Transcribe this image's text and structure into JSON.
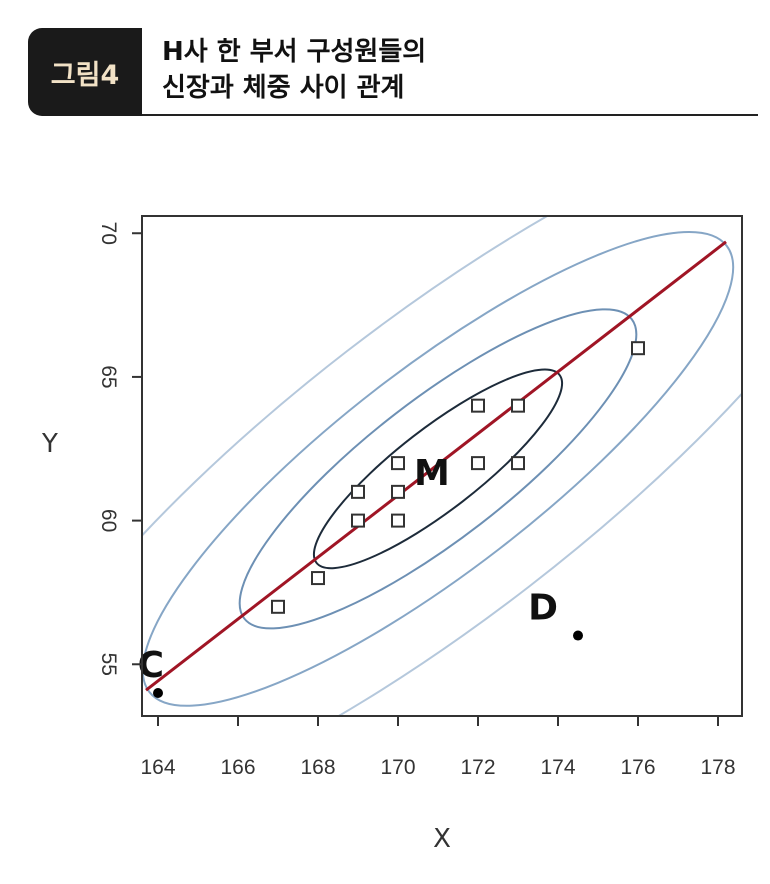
{
  "figure": {
    "badge": "그림4",
    "title_line1": "H사 한 부서 구성원들의",
    "title_line2": "신장과 체중 사이 관계"
  },
  "chart_data": {
    "type": "scatter",
    "xlabel": "X",
    "ylabel": "Y",
    "xlim": [
      163.6,
      178.6
    ],
    "ylim": [
      53.2,
      70.6
    ],
    "xticks": [
      164,
      166,
      168,
      170,
      172,
      174,
      176,
      178
    ],
    "yticks": [
      55,
      60,
      65,
      70
    ],
    "series": [
      {
        "marker": "open-square",
        "color": "#333333",
        "points": [
          [
            167,
            57
          ],
          [
            168,
            58
          ],
          [
            169,
            60
          ],
          [
            169,
            61
          ],
          [
            170,
            60
          ],
          [
            170,
            61
          ],
          [
            170,
            62
          ],
          [
            172,
            62
          ],
          [
            172,
            64
          ],
          [
            173,
            62
          ],
          [
            173,
            64
          ],
          [
            176,
            66
          ]
        ]
      }
    ],
    "labeled_points": [
      {
        "label": "C",
        "x": 164,
        "y": 54,
        "marker": "filled-dot"
      },
      {
        "label": "D",
        "x": 174.5,
        "y": 56,
        "marker": "filled-dot"
      }
    ],
    "center_label": {
      "label": "M",
      "x": 171,
      "y": 61.8
    },
    "regression_line": {
      "x": [
        163.7,
        178.2
      ],
      "y": [
        54.1,
        69.7
      ],
      "color": "#a01525"
    },
    "ellipses": [
      {
        "cx": 171,
        "cy": 61.8,
        "rx": 3.2,
        "ry": 0.85,
        "color": "#1d2b3a"
      },
      {
        "cx": 171,
        "cy": 61.8,
        "rx": 5.1,
        "ry": 1.45,
        "color": "#6d90b4"
      },
      {
        "cx": 171,
        "cy": 61.8,
        "rx": 7.6,
        "ry": 2.1,
        "color": "#86a6c6"
      },
      {
        "cx": 171,
        "cy": 61.8,
        "rx": 11.3,
        "ry": 3.1,
        "color": "#b5c8dc"
      }
    ]
  }
}
